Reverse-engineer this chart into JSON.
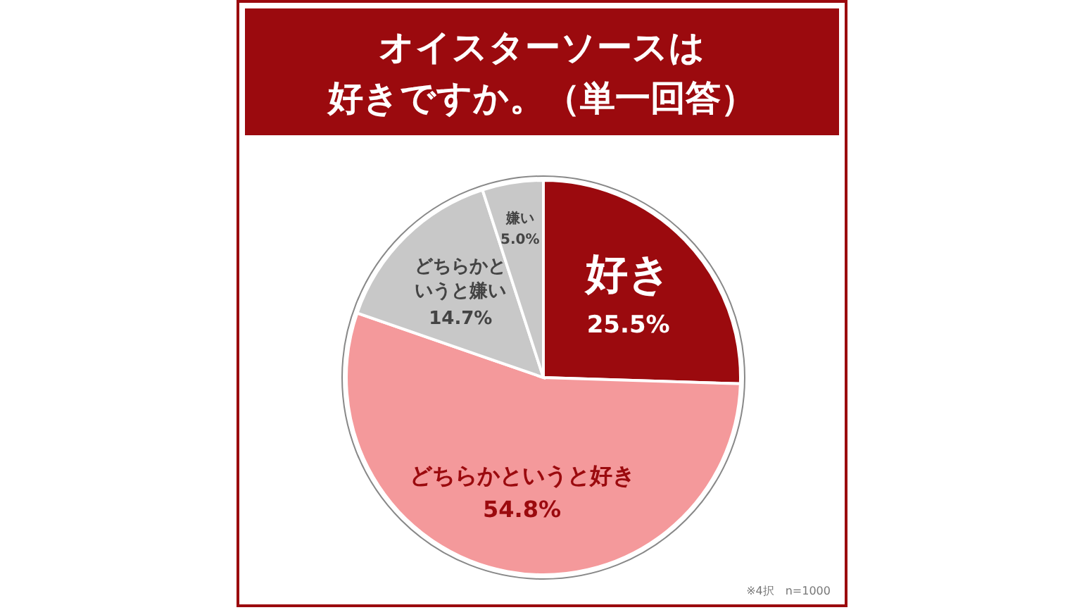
{
  "chart_data": {
    "type": "pie",
    "title": "オイスターソースは好きですか。（単一回答）",
    "categories": [
      "好き",
      "どちらかというと好き",
      "どちらかというと嫌い",
      "嫌い"
    ],
    "values": [
      25.5,
      54.8,
      14.7,
      5.0
    ],
    "value_labels": [
      "25.5%",
      "54.8%",
      "14.7%",
      "5.0%"
    ],
    "colors": [
      "#9b0a0e",
      "#f4999b",
      "#c8c8c8",
      "#c8c8c8"
    ],
    "annotations": [
      "※4択",
      "n=1000"
    ]
  }
}
